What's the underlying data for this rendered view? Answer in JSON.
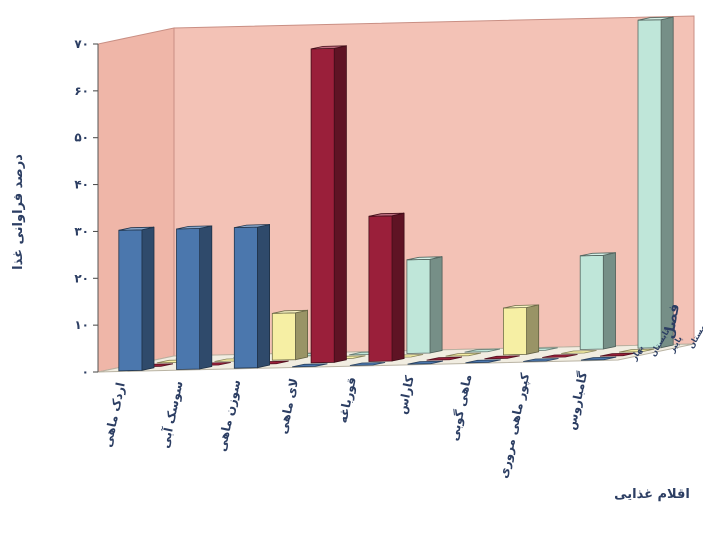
{
  "chart_data": {
    "type": "bar",
    "subtype": "3d-grouped-bar",
    "title": "",
    "ylabel": "درصد فراوانی غذا",
    "xlabel": "اقلام غذایی",
    "zlabel": "فصل",
    "ylim": [
      0,
      70
    ],
    "yticks": [
      "۰",
      "۱۰",
      "۲۰",
      "۳۰",
      "۴۰",
      "۵۰",
      "۶۰",
      "۷۰"
    ],
    "ytick_values": [
      0,
      10,
      20,
      30,
      40,
      50,
      60,
      70
    ],
    "grid": false,
    "categories": [
      "اردک ماهی",
      "سوسک آبی",
      "سوزن ماهی",
      "لای ماهی",
      "قورباغه",
      "کاراس",
      "ماهی گوبی",
      "کپور ماهی مروری",
      "گامباروس"
    ],
    "seasons": [
      "زمستان",
      "پاییز",
      "تابستان",
      "بهار"
    ],
    "series": [
      {
        "name": "زمستان",
        "color": "#bfe6d9",
        "values": [
          0,
          0,
          0,
          0,
          20,
          0,
          0,
          20,
          70
        ]
      },
      {
        "name": "پاییز",
        "color": "#f6efa4",
        "values": [
          0,
          0,
          10,
          0,
          0,
          0,
          10,
          0,
          0
        ]
      },
      {
        "name": "تابستان",
        "color": "#9a1f3a",
        "values": [
          0,
          0,
          0,
          67,
          31,
          0,
          0,
          0,
          0
        ]
      },
      {
        "name": "بهار",
        "color": "#4b77ad",
        "values": [
          30,
          30,
          30,
          0,
          0,
          0,
          0,
          0,
          0
        ]
      }
    ]
  }
}
